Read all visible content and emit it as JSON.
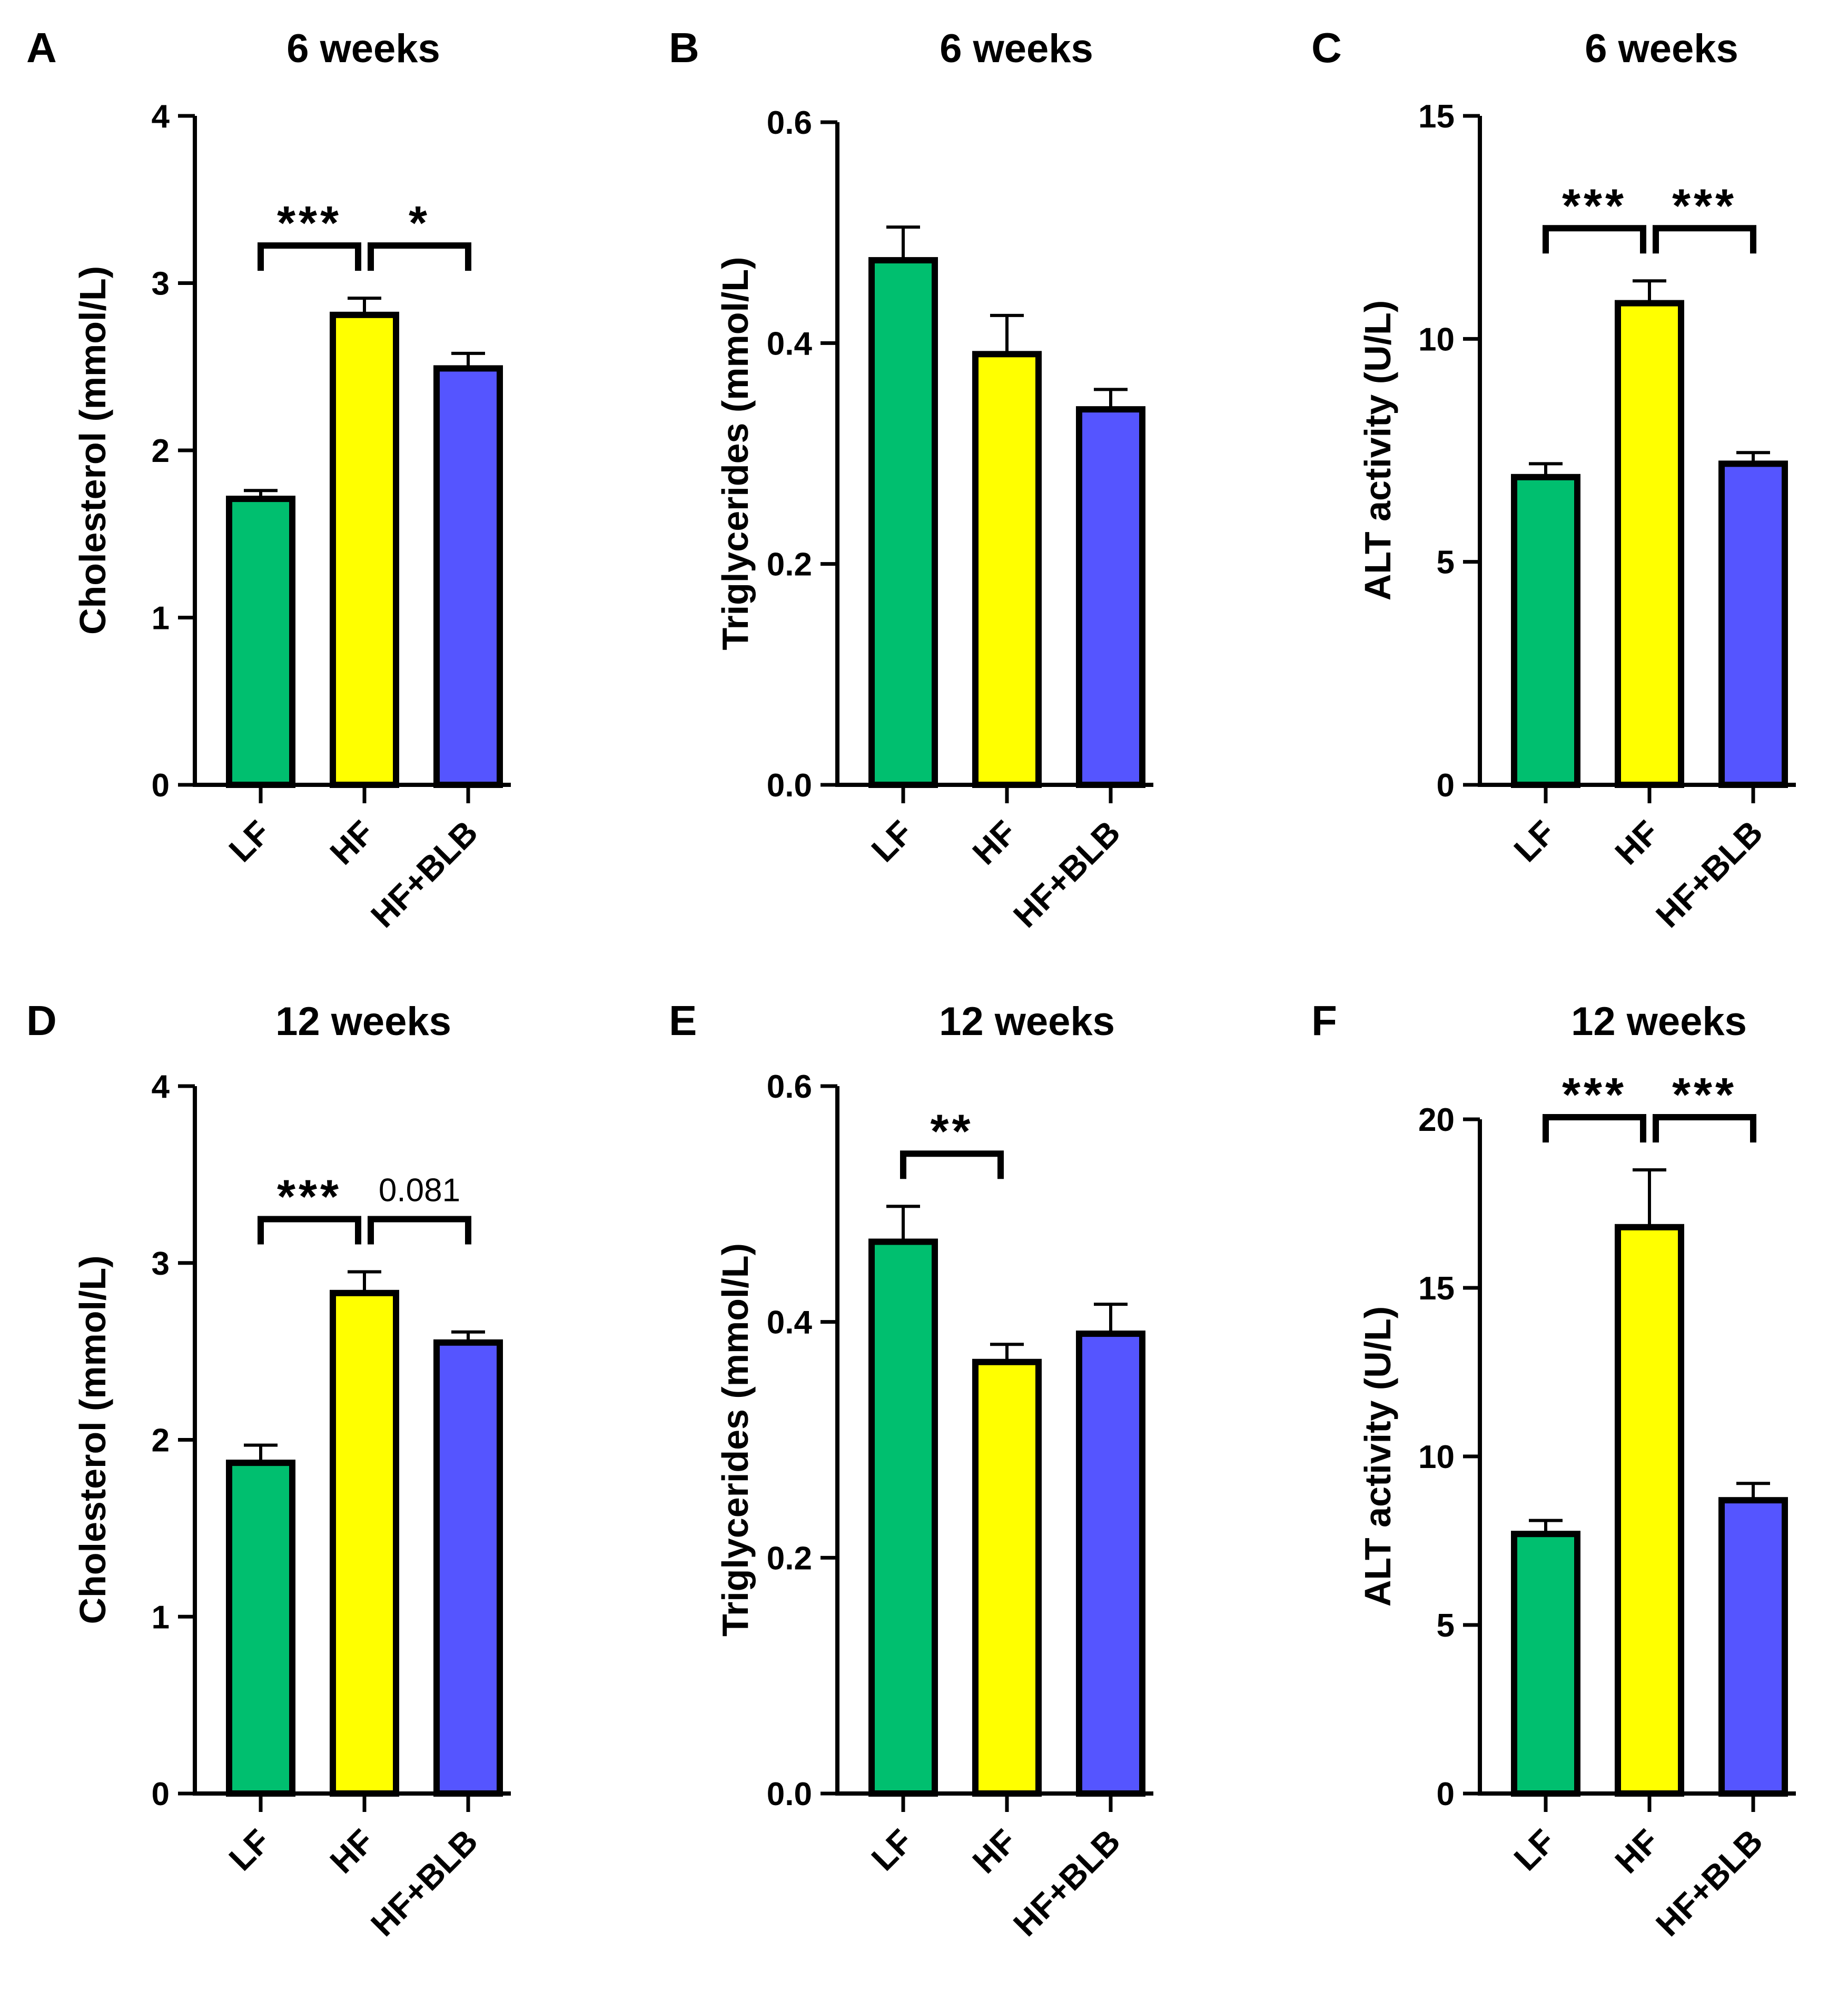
{
  "colors": {
    "LF": "#00BF6F",
    "HF": "#FFFF00",
    "HF+BLB": "#5555FF"
  },
  "chart_data": [
    {
      "panel": "A",
      "type": "bar",
      "title": "6 weeks",
      "ylabel": "Cholesterol (mmol/L)",
      "categories": [
        "LF",
        "HF",
        "HF+BLB"
      ],
      "values": [
        1.71,
        2.81,
        2.49
      ],
      "errors": [
        0.05,
        0.1,
        0.09
      ],
      "ylim": [
        0,
        4
      ],
      "yticks": [
        "0",
        "1",
        "2",
        "3",
        "4"
      ],
      "annotations": [
        {
          "from": 0,
          "to": 1,
          "label": "***"
        },
        {
          "from": 1,
          "to": 2,
          "label": "*"
        }
      ]
    },
    {
      "panel": "B",
      "type": "bar",
      "title": "6 weeks",
      "ylabel": "Triglycerides (mmol/L)",
      "categories": [
        "LF",
        "HF",
        "HF+BLB"
      ],
      "values": [
        0.475,
        0.39,
        0.34
      ],
      "errors": [
        0.03,
        0.035,
        0.018
      ],
      "ylim": [
        0,
        0.6
      ],
      "yticks": [
        "0.0",
        "0.2",
        "0.4",
        "0.6"
      ],
      "annotations": []
    },
    {
      "panel": "C",
      "type": "bar",
      "title": "6 weeks",
      "ylabel": "ALT activity (U/L)",
      "categories": [
        "LF",
        "HF",
        "HF+BLB"
      ],
      "values": [
        6.9,
        10.8,
        7.2
      ],
      "errors": [
        0.3,
        0.5,
        0.25
      ],
      "ylim": [
        0,
        15
      ],
      "yticks": [
        "0",
        "5",
        "10",
        "15"
      ],
      "annotations": [
        {
          "from": 0,
          "to": 1,
          "label": "***"
        },
        {
          "from": 1,
          "to": 2,
          "label": "***"
        }
      ]
    },
    {
      "panel": "D",
      "type": "bar",
      "title": "12 weeks",
      "ylabel": "Cholesterol (mmol/L)",
      "categories": [
        "LF",
        "HF",
        "HF+BLB"
      ],
      "values": [
        1.87,
        2.83,
        2.55
      ],
      "errors": [
        0.1,
        0.12,
        0.06
      ],
      "ylim": [
        0,
        4
      ],
      "yticks": [
        "0",
        "1",
        "2",
        "3",
        "4"
      ],
      "annotations": [
        {
          "from": 0,
          "to": 1,
          "label": "***"
        },
        {
          "from": 1,
          "to": 2,
          "label": "0.081"
        }
      ]
    },
    {
      "panel": "E",
      "type": "bar",
      "title": "12 weeks",
      "ylabel": "Triglycerides (mmol/L)",
      "categories": [
        "LF",
        "HF",
        "HF+BLB"
      ],
      "values": [
        0.468,
        0.366,
        0.39
      ],
      "errors": [
        0.03,
        0.015,
        0.025
      ],
      "ylim": [
        0,
        0.6
      ],
      "yticks": [
        "0.0",
        "0.2",
        "0.4",
        "0.6"
      ],
      "annotations": [
        {
          "from": 0,
          "to": 1,
          "label": "**"
        }
      ]
    },
    {
      "panel": "F",
      "type": "bar",
      "title": "12 weeks",
      "ylabel": "ALT activity (U/L)",
      "categories": [
        "LF",
        "HF",
        "HF+BLB"
      ],
      "values": [
        7.7,
        16.8,
        8.7
      ],
      "errors": [
        0.4,
        1.7,
        0.5
      ],
      "ylim": [
        0,
        20
      ],
      "yticks": [
        "0",
        "5",
        "10",
        "15",
        "20"
      ],
      "annotations": [
        {
          "from": 0,
          "to": 1,
          "label": "***"
        },
        {
          "from": 1,
          "to": 2,
          "label": "***"
        }
      ]
    }
  ]
}
